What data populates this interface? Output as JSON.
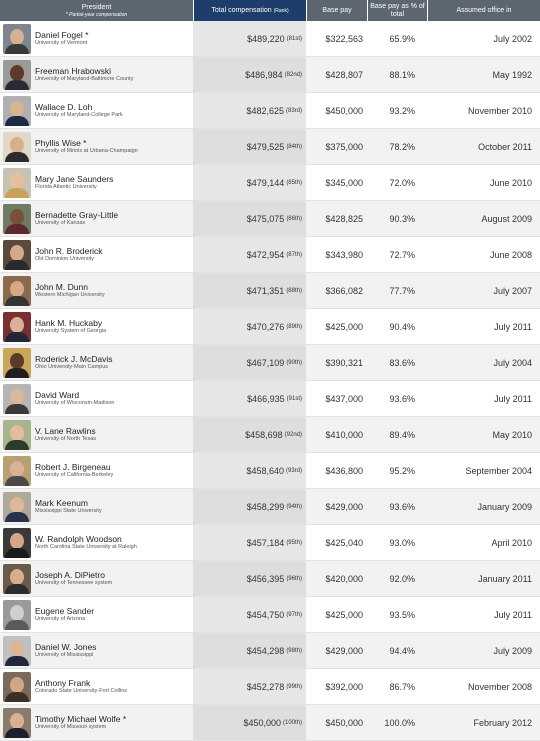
{
  "header": {
    "president": "President",
    "partial_note": "* Partial-year compensation",
    "total": "Total compensation",
    "total_rank": "(Rank)",
    "base": "Base pay",
    "pct": "Base pay as % of total",
    "office": "Assumed office in"
  },
  "rows": [
    {
      "name": "Daniel Fogel *",
      "school": "University of Vermont",
      "total": "$489,220",
      "rank": "(81st)",
      "base": "$322,563",
      "pct": "65.9%",
      "office": "July 2002",
      "skin": "#d8b094",
      "suit": "#3a3a3a",
      "bg": "#7d8590"
    },
    {
      "name": "Freeman Hrabowski",
      "school": "University of Maryland-Baltimore County",
      "total": "$486,984",
      "rank": "(82nd)",
      "base": "$428,807",
      "pct": "88.1%",
      "office": "May 1992",
      "skin": "#5e3b28",
      "suit": "#2a2a35",
      "bg": "#9a9a9a"
    },
    {
      "name": "Wallace D. Loh",
      "school": "University of Maryland-College Park",
      "total": "$482,625",
      "rank": "(83rd)",
      "base": "$450,000",
      "pct": "93.2%",
      "office": "November 2010",
      "skin": "#d9b48e",
      "suit": "#1e2a44",
      "bg": "#b0b0b0"
    },
    {
      "name": "Phyllis Wise *",
      "school": "University of Illinois at Urbana-Champaign",
      "total": "$479,525",
      "rank": "(84th)",
      "base": "$375,000",
      "pct": "78.2%",
      "office": "October 2011",
      "skin": "#d7b08a",
      "suit": "#2b2b2b",
      "bg": "#e0d9c8"
    },
    {
      "name": "Mary Jane Saunders",
      "school": "Florida Atlantic University",
      "total": "$479,144",
      "rank": "(85th)",
      "base": "$345,000",
      "pct": "72.0%",
      "office": "June 2010",
      "skin": "#e3bf9c",
      "suit": "#c9a15a",
      "bg": "#c8c2b4"
    },
    {
      "name": "Bernadette Gray-Little",
      "school": "University of Kansas",
      "total": "$475,075",
      "rank": "(86th)",
      "base": "$428,825",
      "pct": "90.3%",
      "office": "August 2009",
      "skin": "#7a5038",
      "suit": "#5a2a30",
      "bg": "#6f7a62"
    },
    {
      "name": "John R. Broderick",
      "school": "Old Dominion University",
      "total": "$472,954",
      "rank": "(87th)",
      "base": "$343,980",
      "pct": "72.7%",
      "office": "June 2008",
      "skin": "#d6a98a",
      "suit": "#2a2a2a",
      "bg": "#5a4a3a"
    },
    {
      "name": "John M. Dunn",
      "school": "Western Michigan University",
      "total": "$471,351",
      "rank": "(88th)",
      "base": "$366,082",
      "pct": "77.7%",
      "office": "July 2007",
      "skin": "#d5a888",
      "suit": "#343434",
      "bg": "#8a6a4a"
    },
    {
      "name": "Hank M. Huckaby",
      "school": "University System of Georgia",
      "total": "$470,276",
      "rank": "(89th)",
      "base": "$425,000",
      "pct": "90.4%",
      "office": "July 2011",
      "skin": "#d9b195",
      "suit": "#202838",
      "bg": "#7a3030"
    },
    {
      "name": "Roderick J. McDavis",
      "school": "Ohio University-Main Campus",
      "total": "$467,109",
      "rank": "(90th)",
      "base": "$390,321",
      "pct": "83.6%",
      "office": "July 2004",
      "skin": "#5a3a28",
      "suit": "#1e1e1e",
      "bg": "#c8a65a"
    },
    {
      "name": "David Ward",
      "school": "University of Wisconsin-Madison",
      "total": "$466,935",
      "rank": "(91st)",
      "base": "$437,000",
      "pct": "93.6%",
      "office": "July 2011",
      "skin": "#dcb89a",
      "suit": "#3a3a3a",
      "bg": "#b5b5b5"
    },
    {
      "name": "V. Lane Rawlins",
      "school": "University of North Texas",
      "total": "$458,698",
      "rank": "(92nd)",
      "base": "$410,000",
      "pct": "89.4%",
      "office": "May 2010",
      "skin": "#e0bd9e",
      "suit": "#2e3a2a",
      "bg": "#a8b48a"
    },
    {
      "name": "Robert J. Birgeneau",
      "school": "University of California-Berkeley",
      "total": "$458,640",
      "rank": "(93rd)",
      "base": "$436,800",
      "pct": "95.2%",
      "office": "September 2004",
      "skin": "#d8b292",
      "suit": "#4a4a4a",
      "bg": "#b8a070"
    },
    {
      "name": "Mark Keenum",
      "school": "Mississippi State University",
      "total": "$458,299",
      "rank": "(94th)",
      "base": "$429,000",
      "pct": "93.6%",
      "office": "January 2009",
      "skin": "#dfb89a",
      "suit": "#28304a",
      "bg": "#b0a898"
    },
    {
      "name": "W. Randolph Woodson",
      "school": "North Carolina State University at Raleigh",
      "total": "$457,184",
      "rank": "(95th)",
      "base": "$425,040",
      "pct": "93.0%",
      "office": "April 2010",
      "skin": "#d4a886",
      "suit": "#1a1a1a",
      "bg": "#3a3a3a"
    },
    {
      "name": "Joseph A. DiPietro",
      "school": "University of Tennessee system",
      "total": "$456,395",
      "rank": "(96th)",
      "base": "$420,000",
      "pct": "92.0%",
      "office": "January 2011",
      "skin": "#d7ad8e",
      "suit": "#2c2c2c",
      "bg": "#6a5a4a"
    },
    {
      "name": "Eugene Sander",
      "school": "University of Arizona",
      "total": "$454,750",
      "rank": "(97th)",
      "base": "$425,000",
      "pct": "93.5%",
      "office": "July 2011",
      "skin": "#cfcfcf",
      "suit": "#5a5a5a",
      "bg": "#9a9a9a"
    },
    {
      "name": "Daniel W. Jones",
      "school": "University of Mississippi",
      "total": "$454,298",
      "rank": "(98th)",
      "base": "$429,000",
      "pct": "94.4%",
      "office": "July 2009",
      "skin": "#dcb698",
      "suit": "#22283a",
      "bg": "#c0c0c0"
    },
    {
      "name": "Anthony Frank",
      "school": "Colorado State University-Fort Collins",
      "total": "$452,278",
      "rank": "(99th)",
      "base": "$392,000",
      "pct": "86.7%",
      "office": "November 2008",
      "skin": "#d2a684",
      "suit": "#3a3028",
      "bg": "#7a6a5a"
    },
    {
      "name": "Timothy Michael Wolfe *",
      "school": "University of Missouri system",
      "total": "$450,000",
      "rank": "(100th)",
      "base": "$450,000",
      "pct": "100.0%",
      "office": "February 2012",
      "skin": "#d9b092",
      "suit": "#1c2030",
      "bg": "#8a7a6a"
    }
  ]
}
